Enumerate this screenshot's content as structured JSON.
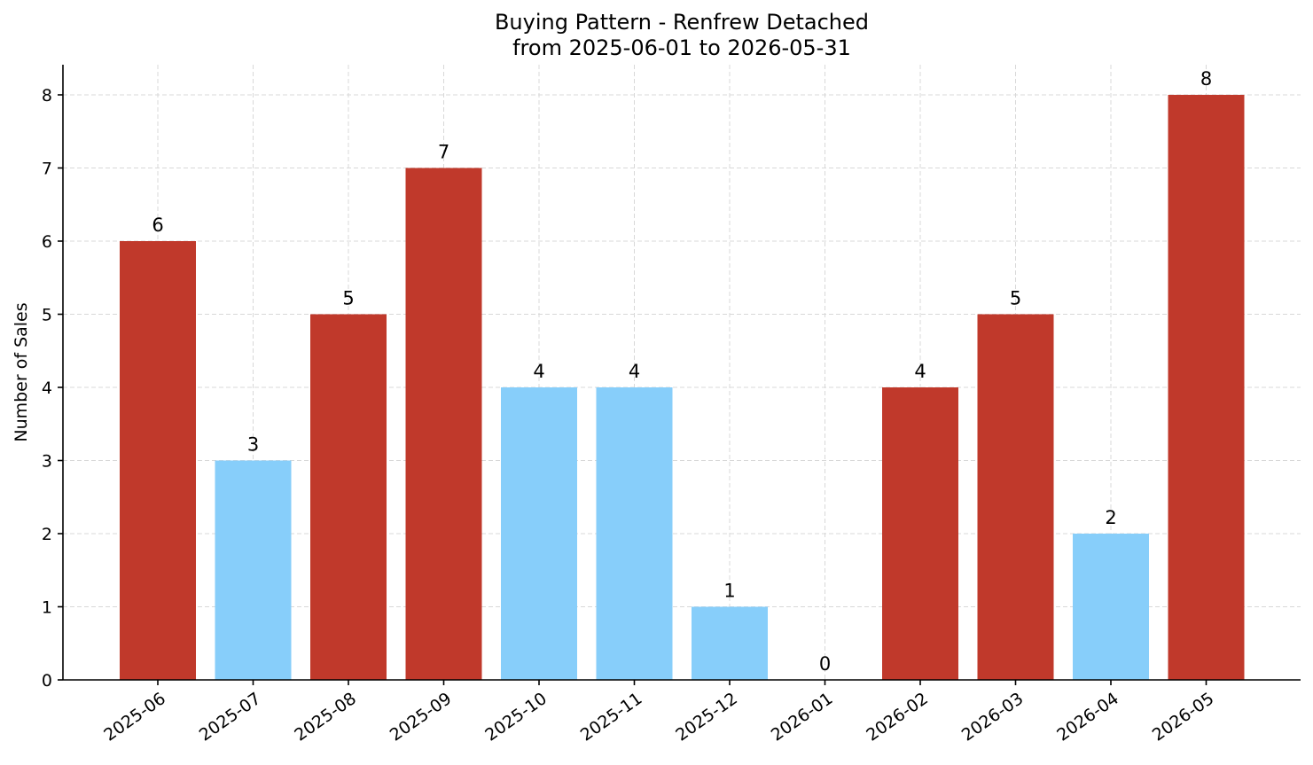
{
  "chart_data": {
    "type": "bar",
    "title": "Buying Pattern - Renfrew Detached",
    "subtitle": "from 2025-06-01 to 2026-05-31",
    "xlabel": "",
    "ylabel": "Number of Sales",
    "categories": [
      "2025-06",
      "2025-07",
      "2025-08",
      "2025-09",
      "2025-10",
      "2025-11",
      "2025-12",
      "2026-01",
      "2026-02",
      "2026-03",
      "2026-04",
      "2026-05"
    ],
    "values": [
      6,
      3,
      5,
      7,
      4,
      4,
      1,
      0,
      4,
      5,
      2,
      8
    ],
    "bar_colors": [
      "#c0392b",
      "#87cefa",
      "#c0392b",
      "#c0392b",
      "#87cefa",
      "#87cefa",
      "#87cefa",
      "#87cefa",
      "#c0392b",
      "#c0392b",
      "#87cefa",
      "#c0392b"
    ],
    "yticks": [
      0,
      1,
      2,
      3,
      4,
      5,
      6,
      7,
      8
    ],
    "ylim": [
      0,
      8.4
    ],
    "grid": true,
    "data_labels": true,
    "legend": "none"
  }
}
